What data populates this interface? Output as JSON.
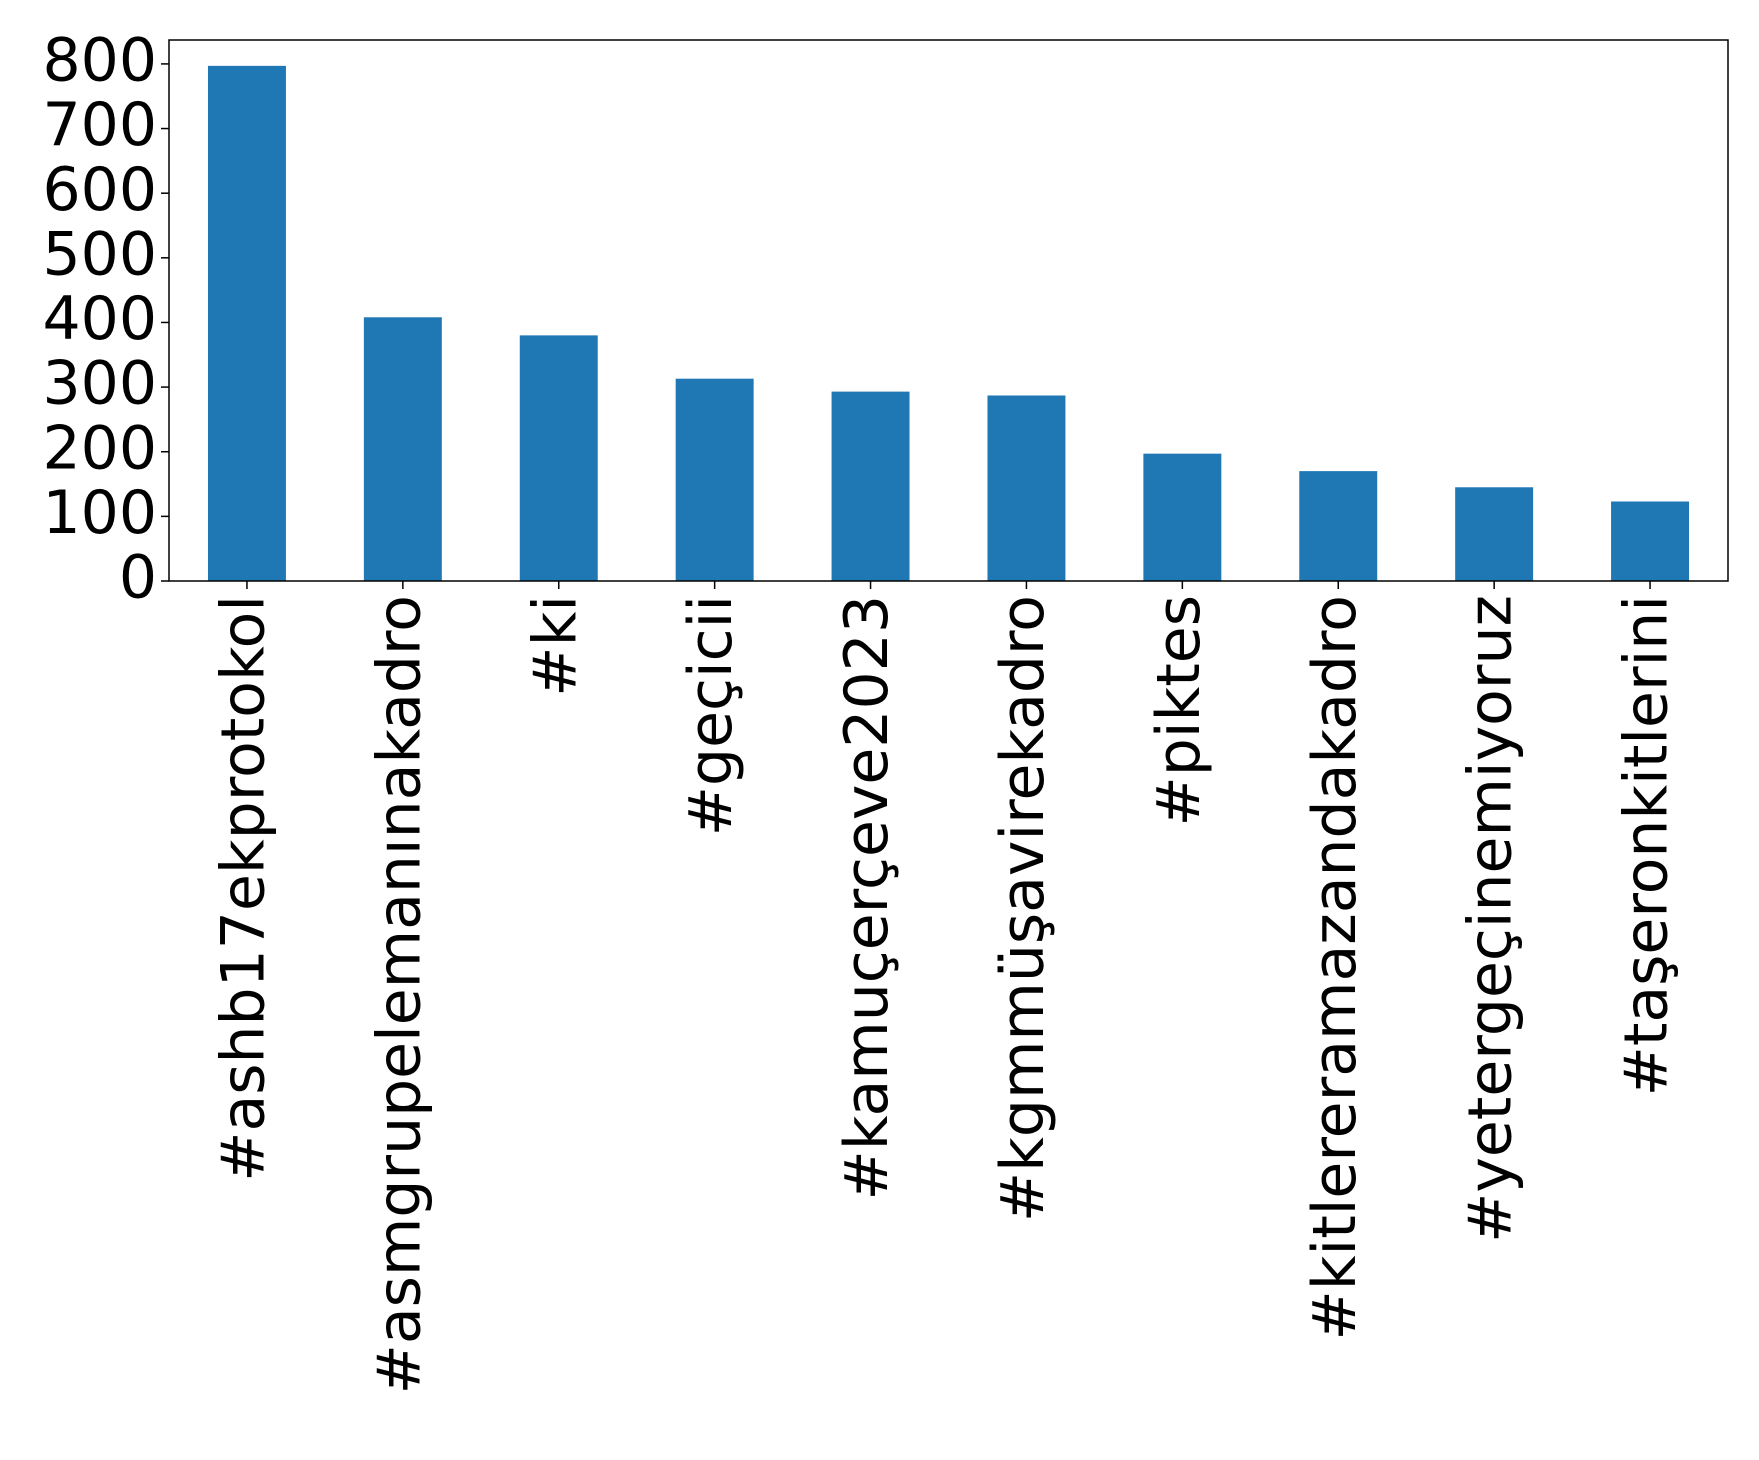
{
  "chart_data": {
    "type": "bar",
    "categories": [
      "#ashb17ekprotokol",
      "#asmgrupelemanınakadro",
      "#ki",
      "#geçicii",
      "#kamuçerçeve2023",
      "#kgmmüşavirekadro",
      "#piktes",
      "#kitlereramazandakadro",
      "#yetergeçinemiyoruz",
      "#taşeronkitlerini"
    ],
    "values": [
      797,
      408,
      380,
      313,
      293,
      287,
      197,
      170,
      145,
      123
    ],
    "color": "#1f77b4",
    "ylim": [
      0,
      837
    ],
    "yticks": [
      0,
      100,
      200,
      300,
      400,
      500,
      600,
      700,
      800
    ],
    "grid": false
  }
}
